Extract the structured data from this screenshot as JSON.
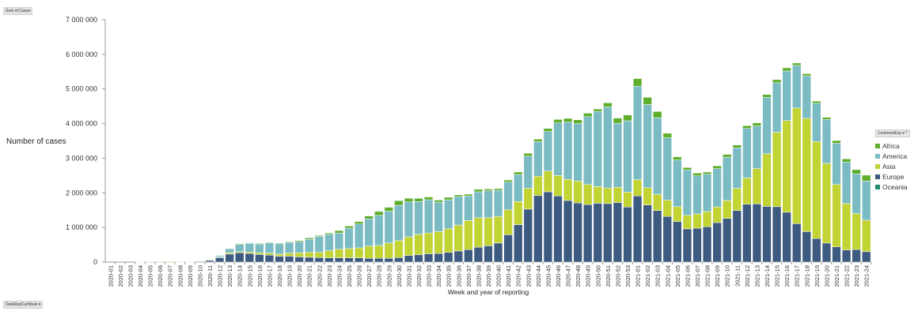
{
  "buttons": {
    "values_field": "Sum of Cases",
    "axis_field": "DateRepCurWeek",
    "legend_field": "ContinentExp",
    "legend_filter_icon": "filter-dropdown-icon",
    "axis_dropdown_icon": "chevron-down-icon"
  },
  "chart_data": {
    "type": "bar",
    "stacked": true,
    "title": "",
    "xlabel": "Week and year of reporting",
    "ylabel": "Number of cases",
    "ylim": [
      0,
      7000000
    ],
    "yticks": [
      "0",
      "1 000 000",
      "2 000 000",
      "3 000 000",
      "4 000 000",
      "5 000 000",
      "6 000 000",
      "7 000 000"
    ],
    "grid": false,
    "legend_placement": "right",
    "categories": [
      "2020-01",
      "2020-02",
      "2020-03",
      "2020-04",
      "2020-05",
      "2020-06",
      "2020-07",
      "2020-08",
      "2020-09",
      "2020-10",
      "2020-11",
      "2020-12",
      "2020-13",
      "2020-14",
      "2020-15",
      "2020-16",
      "2020-17",
      "2020-18",
      "2020-19",
      "2020-20",
      "2020-21",
      "2020-22",
      "2020-23",
      "2020-24",
      "2020-25",
      "2020-26",
      "2020-27",
      "2020-28",
      "2020-29",
      "2020-30",
      "2020-31",
      "2020-32",
      "2020-33",
      "2020-34",
      "2020-35",
      "2020-36",
      "2020-37",
      "2020-38",
      "2020-39",
      "2020-40",
      "2020-41",
      "2020-42",
      "2020-43",
      "2020-44",
      "2020-45",
      "2020-46",
      "2020-47",
      "2020-48",
      "2020-49",
      "2020-50",
      "2020-51",
      "2020-52",
      "2020-53",
      "2021-01",
      "2021-02",
      "2021-03",
      "2021-04",
      "2021-05",
      "2021-06",
      "2021-07",
      "2021-08",
      "2021-09",
      "2021-10",
      "2021-11",
      "2021-12",
      "2021-13",
      "2021-14",
      "2021-15",
      "2021-16",
      "2021-17",
      "2021-18",
      "2021-19",
      "2021-20",
      "2021-21",
      "2021-22",
      "2021-23",
      "2021-24"
    ],
    "series": [
      {
        "name": "Europe",
        "color": "#3d5a80",
        "values": [
          0,
          0,
          0,
          0,
          0,
          0,
          0,
          0,
          5000,
          20000,
          50000,
          130000,
          230000,
          270000,
          250000,
          220000,
          200000,
          170000,
          170000,
          150000,
          140000,
          130000,
          120000,
          120000,
          120000,
          120000,
          110000,
          110000,
          110000,
          130000,
          190000,
          210000,
          240000,
          250000,
          280000,
          320000,
          360000,
          430000,
          470000,
          550000,
          790000,
          1080000,
          1530000,
          1920000,
          2030000,
          1910000,
          1780000,
          1710000,
          1660000,
          1700000,
          1690000,
          1720000,
          1590000,
          1910000,
          1650000,
          1490000,
          1320000,
          1170000,
          960000,
          980000,
          1020000,
          1140000,
          1260000,
          1490000,
          1670000,
          1680000,
          1610000,
          1600000,
          1440000,
          1110000,
          880000,
          680000,
          550000,
          440000,
          350000,
          360000,
          300000
        ]
      },
      {
        "name": "Asia",
        "color": "#c2d334",
        "values": [
          0,
          0,
          0,
          5000,
          15000,
          20000,
          25000,
          10000,
          10000,
          15000,
          10000,
          10000,
          40000,
          30000,
          40000,
          50000,
          60000,
          60000,
          90000,
          120000,
          140000,
          150000,
          210000,
          250000,
          270000,
          290000,
          350000,
          370000,
          440000,
          490000,
          540000,
          590000,
          600000,
          630000,
          680000,
          750000,
          840000,
          850000,
          810000,
          770000,
          720000,
          670000,
          600000,
          560000,
          600000,
          590000,
          610000,
          630000,
          580000,
          480000,
          450000,
          440000,
          430000,
          470000,
          500000,
          470000,
          470000,
          430000,
          390000,
          410000,
          440000,
          450000,
          520000,
          640000,
          760000,
          1020000,
          1520000,
          2150000,
          2650000,
          3340000,
          3270000,
          2800000,
          2300000,
          1800000,
          1340000,
          1040000,
          910000
        ]
      },
      {
        "name": "America",
        "color": "#7bbcc4",
        "values": [
          0,
          0,
          0,
          0,
          0,
          0,
          0,
          0,
          0,
          5000,
          20000,
          50000,
          120000,
          210000,
          250000,
          250000,
          290000,
          300000,
          310000,
          320000,
          380000,
          460000,
          470000,
          470000,
          590000,
          690000,
          790000,
          870000,
          920000,
          1020000,
          1010000,
          950000,
          960000,
          850000,
          840000,
          820000,
          710000,
          750000,
          780000,
          750000,
          800000,
          780000,
          930000,
          1000000,
          1140000,
          1520000,
          1650000,
          1660000,
          1960000,
          2170000,
          2340000,
          1850000,
          2060000,
          2700000,
          2400000,
          2210000,
          1800000,
          1350000,
          1310000,
          1100000,
          1080000,
          1110000,
          1250000,
          1170000,
          1430000,
          1230000,
          1630000,
          1430000,
          1430000,
          1230000,
          1230000,
          1110000,
          1270000,
          1190000,
          1200000,
          1150000,
          1130000
        ]
      },
      {
        "name": "Africa",
        "color": "#5fae2c",
        "values": [
          0,
          0,
          0,
          0,
          2000,
          3000,
          3000,
          2000,
          2000,
          2000,
          3000,
          5000,
          5000,
          30000,
          20000,
          20000,
          20000,
          20000,
          20000,
          30000,
          40000,
          30000,
          40000,
          70000,
          70000,
          80000,
          90000,
          120000,
          120000,
          140000,
          110000,
          100000,
          80000,
          60000,
          70000,
          50000,
          50000,
          70000,
          50000,
          50000,
          60000,
          70000,
          80000,
          70000,
          90000,
          100000,
          110000,
          110000,
          100000,
          70000,
          120000,
          150000,
          170000,
          220000,
          210000,
          180000,
          130000,
          90000,
          70000,
          80000,
          60000,
          80000,
          80000,
          80000,
          80000,
          90000,
          80000,
          90000,
          90000,
          70000,
          60000,
          60000,
          60000,
          80000,
          90000,
          120000,
          170000
        ]
      },
      {
        "name": "Oceania",
        "color": "#1e8a6e",
        "values": [
          0,
          0,
          0,
          0,
          0,
          0,
          0,
          0,
          0,
          0,
          0,
          1000,
          2000,
          2000,
          1000,
          0,
          0,
          0,
          0,
          0,
          0,
          0,
          0,
          0,
          1000,
          2000,
          3000,
          3000,
          3000,
          3000,
          2000,
          1000,
          0,
          0,
          0,
          0,
          0,
          0,
          0,
          0,
          0,
          0,
          0,
          0,
          0,
          0,
          0,
          0,
          0,
          0,
          0,
          0,
          0,
          0,
          0,
          0,
          0,
          0,
          0,
          0,
          0,
          0,
          0,
          0,
          0,
          0,
          0,
          0,
          0,
          0,
          0,
          0,
          0,
          0,
          0,
          0,
          0
        ]
      }
    ],
    "legend_order": [
      "Africa",
      "America",
      "Asia",
      "Europe",
      "Oceania"
    ]
  }
}
